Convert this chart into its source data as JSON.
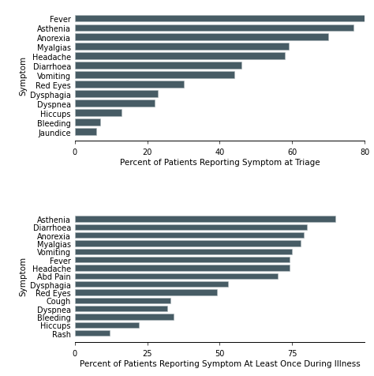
{
  "chart1": {
    "symptoms": [
      "Fever",
      "Asthenia",
      "Anorexia",
      "Myalgias",
      "Headache",
      "Diarrhoea",
      "Vomiting",
      "Red Eyes",
      "Dysphagia",
      "Dyspnea",
      "Hiccups",
      "Bleeding",
      "Jaundice"
    ],
    "values": [
      87,
      77,
      70,
      59,
      58,
      46,
      44,
      30,
      23,
      22,
      13,
      7,
      6
    ],
    "xlabel": "Percent of Patients Reporting Symptom at Triage",
    "ylabel": "Symptom",
    "xlim": [
      0,
      80
    ],
    "xticks": [
      0,
      20,
      40,
      60,
      80
    ]
  },
  "chart2": {
    "symptoms": [
      "Asthenia",
      "Diarrhoea",
      "Anorexia",
      "Myalgias",
      "Vomiting",
      "Fever",
      "Headache",
      "Abd Pain",
      "Dysphagia",
      "Red Eyes",
      "Cough",
      "Dyspnea",
      "Bleeding",
      "Hiccups",
      "Rash"
    ],
    "values": [
      90,
      80,
      79,
      78,
      75,
      74,
      74,
      70,
      53,
      49,
      33,
      32,
      34,
      22,
      12
    ],
    "xlabel": "Percent of Patients Reporting Symptom At Least Once During Illness",
    "ylabel": "Symptom",
    "xlim": [
      0,
      100
    ],
    "xticks": [
      0,
      25,
      50,
      75
    ]
  },
  "bar_color": "#475c65",
  "bar_edge_color": "#b0b8bc",
  "background_color": "#ffffff",
  "tick_label_fontsize": 7.0,
  "axis_label_fontsize": 7.5,
  "xlabel_fontsize": 7.5,
  "bar_height": 0.72
}
